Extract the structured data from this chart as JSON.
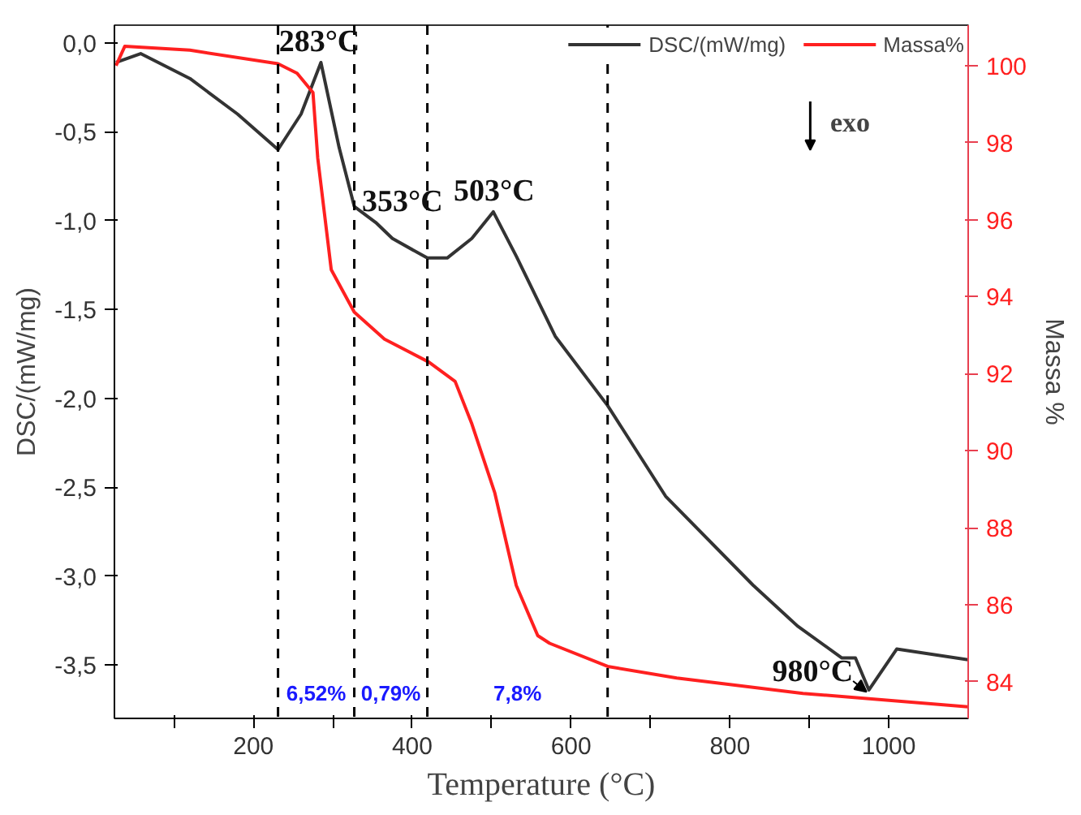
{
  "chart_data": {
    "type": "line",
    "xlabel": "Temperature (°C)",
    "ylabel": "DSC/(mW/mg)",
    "y2label": "Massa %",
    "xlim": [
      25,
      1100
    ],
    "ylim": [
      -3.8,
      0.1
    ],
    "y2lim": [
      83.05,
      101.05
    ],
    "xticks": [
      {
        "value": 100,
        "label": null
      },
      200,
      {
        "value": 300,
        "label": null
      },
      400,
      {
        "value": 500,
        "label": null
      },
      600,
      {
        "value": 700,
        "label": null
      },
      800,
      {
        "value": 900,
        "label": null
      },
      1000
    ],
    "yticks": [
      {
        "value": 0,
        "label": "0,0"
      },
      {
        "value": -0.5,
        "label": "-0,5"
      },
      {
        "value": -1,
        "label": "-1,0"
      },
      {
        "value": -1.5,
        "label": "-1,5"
      },
      {
        "value": -2,
        "label": "-2,0"
      },
      {
        "value": -2.5,
        "label": "-2,5"
      },
      {
        "value": -3,
        "label": "-3,0"
      },
      {
        "value": -3.5,
        "label": "-3,5"
      }
    ],
    "y2ticks": [
      84,
      86,
      88,
      90,
      92,
      94,
      96,
      98,
      100
    ],
    "grid": false,
    "legend": "top",
    "marker": "none",
    "line_style": "solid",
    "series": [
      {
        "name": "DSC/(mW/mg)",
        "color": "#333333",
        "x": [
          27,
          58,
          120,
          180,
          231,
          260,
          285,
          308,
          327,
          354,
          375,
          419,
          444,
          475,
          502,
          531,
          580,
          646,
          719,
          829,
          885,
          941,
          958,
          975,
          1010,
          1100
        ],
        "values": [
          -0.11,
          -0.06,
          -0.2,
          -0.4,
          -0.6,
          -0.4,
          -0.11,
          -0.59,
          -0.92,
          -1.01,
          -1.1,
          -1.21,
          -1.21,
          -1.1,
          -0.95,
          -1.2,
          -1.65,
          -2.04,
          -2.55,
          -3.05,
          -3.28,
          -3.46,
          -3.46,
          -3.64,
          -3.41,
          -3.47
        ]
      },
      {
        "name": "Massa%",
        "color": "#ff2020",
        "axis": "y2",
        "x": [
          27,
          38,
          120,
          231,
          255,
          275,
          281,
          298,
          327,
          365,
          421,
          454,
          475,
          504,
          531,
          558,
          573,
          646,
          733,
          892,
          1100
        ],
        "values": [
          100.0,
          100.5,
          100.4,
          100.05,
          99.8,
          99.3,
          97.6,
          94.7,
          93.6,
          92.9,
          92.3,
          91.8,
          90.7,
          88.9,
          86.5,
          85.2,
          85.0,
          84.4,
          84.1,
          83.7,
          83.35
        ]
      }
    ],
    "ref_lines": [
      {
        "axis": "x",
        "value": 231,
        "color": "#000000",
        "line_style": "dashed"
      },
      {
        "axis": "x",
        "value": 327,
        "color": "#000000",
        "line_style": "dashed"
      },
      {
        "axis": "x",
        "value": 419,
        "color": "#000000",
        "line_style": "dashed"
      },
      {
        "axis": "x",
        "value": 646,
        "color": "#000000",
        "line_style": "dashed"
      }
    ],
    "annotations": [
      {
        "text": "283°C",
        "x": 283,
        "y": -0.11
      },
      {
        "text": "353°C",
        "x": 353,
        "y": -1.01
      },
      {
        "text": "503°C",
        "x": 503,
        "y": -0.95
      },
      {
        "text": "980°C",
        "x": 975,
        "y": -3.64
      },
      "exo",
      "6,52%",
      "0,79%",
      "7,8%"
    ]
  }
}
